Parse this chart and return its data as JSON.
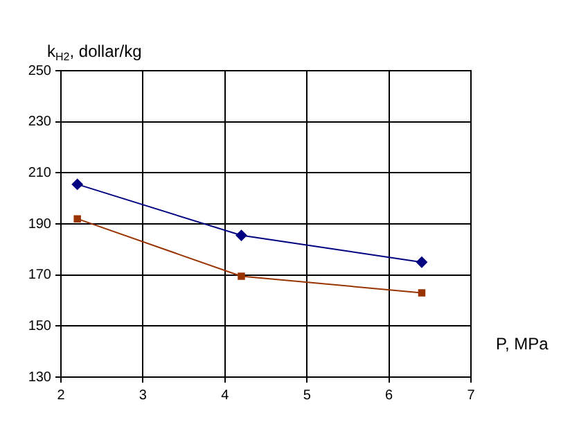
{
  "chart_data": {
    "type": "line",
    "xlabel": "P, MPa",
    "ylabel": "k$_{H2}$, dollar/kg",
    "xlim": [
      2,
      7
    ],
    "xticks": [
      2,
      3,
      4,
      5,
      6,
      7
    ],
    "ylim": [
      130,
      250
    ],
    "yticks": [
      130,
      150,
      170,
      190,
      210,
      230,
      250
    ],
    "grid": true,
    "legend": false,
    "series": [
      {
        "x": [
          2.2,
          4.2,
          6.4
        ],
        "values": [
          205.5,
          185.5,
          175
        ],
        "color": "#000080",
        "marker": "diamond"
      },
      {
        "x": [
          2.2,
          4.2,
          6.4
        ],
        "values": [
          192,
          169.5,
          163
        ],
        "color": "#993300",
        "marker": "square"
      }
    ]
  }
}
